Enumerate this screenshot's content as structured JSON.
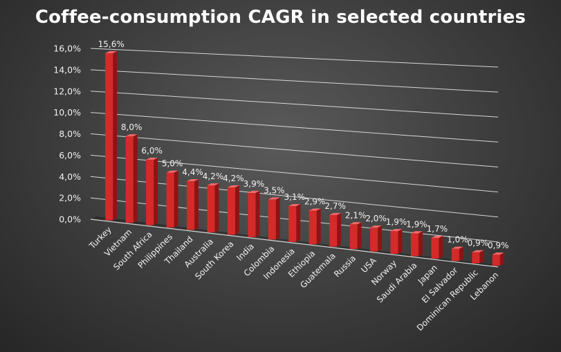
{
  "chart_data": {
    "type": "bar",
    "title": "Coffee-consumption CAGR in selected countries",
    "xlabel": "",
    "ylabel": "",
    "ylim": [
      0,
      16
    ],
    "y_ticks": [
      "0,0%",
      "2,0%",
      "4,0%",
      "6,0%",
      "8,0%",
      "10,0%",
      "12,0%",
      "14,0%",
      "16,0%"
    ],
    "categories": [
      "Turkey",
      "Vietnam",
      "South Africa",
      "Philippines",
      "Thailand",
      "Australia",
      "South Korea",
      "India",
      "Colombia",
      "Indonesia",
      "Ethiopia",
      "Guatemala",
      "Russia",
      "USA",
      "Norway",
      "Saudi Arabia",
      "Japan",
      "El Salvador",
      "Dominican Republic",
      "Lebanon"
    ],
    "values": [
      15.6,
      8.0,
      6.0,
      5.0,
      4.4,
      4.2,
      4.2,
      3.9,
      3.5,
      3.1,
      2.9,
      2.7,
      2.1,
      2.0,
      1.9,
      1.9,
      1.7,
      1.0,
      0.9,
      0.9
    ],
    "data_labels": [
      "15,6%",
      "8,0%",
      "6,0%",
      "5,0%",
      "4,4%",
      "4,2%",
      "4,2%",
      "3,9%",
      "3,5%",
      "3,1%",
      "2,9%",
      "2,7%",
      "2,1%",
      "2,0%",
      "1,9%",
      "1,9%",
      "1,7%",
      "1,0%",
      "0,9%",
      "0,9%"
    ],
    "grid": true,
    "legend": "none",
    "colors": {
      "bar_front": "#d42a2a",
      "bar_side": "#8e1414",
      "bar_top": "#f06a6a",
      "grid": "#e8e8e8",
      "text": "#f2f2f2"
    }
  }
}
